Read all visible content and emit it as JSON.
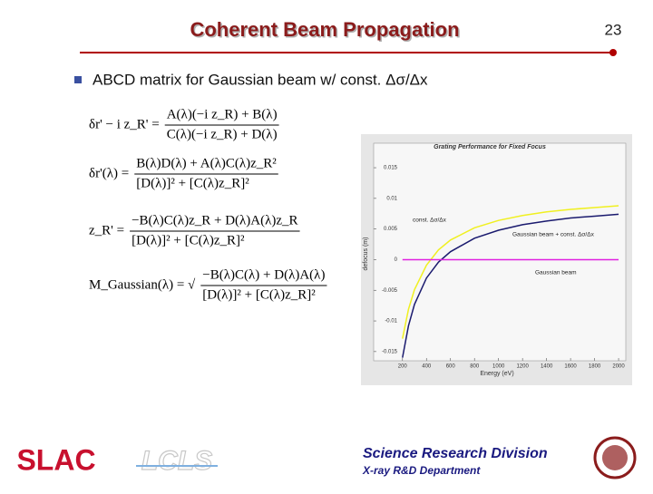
{
  "header": {
    "title": "Coherent Beam Propagation",
    "page_number": "23"
  },
  "bullet": "ABCD matrix for Gaussian beam w/ const. Δσ/Δx",
  "equations": [
    {
      "lhs": "δr' − i z_R' =",
      "numerator": "A(λ)(−i z_R) + B(λ)",
      "denominator": "C(λ)(−i z_R) + D(λ)"
    },
    {
      "lhs": "δr'(λ) =",
      "numerator": "B(λ)D(λ) + A(λ)C(λ)z_R²",
      "denominator": "[D(λ)]² + [C(λ)z_R]²"
    },
    {
      "lhs": "z_R' =",
      "numerator": "−B(λ)C(λ)z_R + D(λ)A(λ)z_R",
      "denominator": "[D(λ)]² + [C(λ)z_R]²"
    },
    {
      "lhs": "M_Gaussian(λ) = √",
      "numerator": "−B(λ)C(λ) + D(λ)A(λ)",
      "denominator": "[D(λ)]² + [C(λ)z_R]²"
    }
  ],
  "chart": {
    "type": "line",
    "title": "Grating Performance for Fixed Focus",
    "x_label": "Energy (eV)",
    "y_label": "defocus (m)",
    "x": [
      200,
      250,
      300,
      400,
      500,
      600,
      800,
      1000,
      1200,
      1400,
      1600,
      1800,
      2000
    ],
    "series": [
      {
        "name": "const. Δσ/Δx",
        "color": "#f0f020",
        "values": [
          -0.0129,
          -0.0081,
          -0.0049,
          -0.0009,
          0.0016,
          0.0032,
          0.0052,
          0.0064,
          0.0072,
          0.0078,
          0.0082,
          0.0085,
          0.0088
        ]
      },
      {
        "name": "Gaussian beam + const. Δσ/Δx",
        "color": "#1a1a6e",
        "values": [
          -0.016,
          -0.0108,
          -0.0073,
          -0.003,
          -0.0004,
          0.0013,
          0.0035,
          0.0048,
          0.0057,
          0.0063,
          0.0068,
          0.0071,
          0.0074
        ]
      },
      {
        "name": "Gaussian beam",
        "color": "#e020e0",
        "values": [
          0,
          0,
          0,
          0,
          0,
          0,
          0,
          0,
          0,
          0,
          0,
          0,
          0
        ]
      }
    ],
    "xlim": [
      -40,
      2060
    ],
    "ylim": [
      -0.0165,
      0.019
    ],
    "xticks": [
      200,
      400,
      600,
      800,
      1000,
      1200,
      1400,
      1600,
      1800,
      2000
    ],
    "yticks": [
      0.015,
      0.01,
      0.005,
      0,
      -0.005,
      -0.01,
      -0.015
    ]
  },
  "footer": {
    "division": "Science Research Division",
    "department": "X-ray R&D Department",
    "logo_left": "SLAC",
    "logo_mid": "LCLS"
  }
}
